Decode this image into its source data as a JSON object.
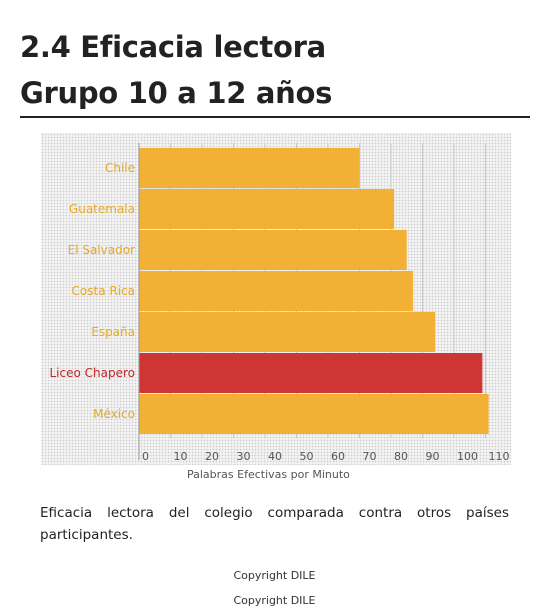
{
  "title_line1": "2.4 Eficacia lectora",
  "title_line2": "Grupo 10 a 12 años",
  "caption": "Eficacia lectora del colegio comparada contra otros países participantes.",
  "copyright": [
    "Copyright DILE",
    "Copyright DILE"
  ],
  "colors": {
    "bar": "#f2b035",
    "highlight_bar": "#d03535",
    "category_label": "#e9a825",
    "highlight_label": "#c62828",
    "grid": "#c8c8c8",
    "axis_text": "#555555"
  },
  "chart_data": {
    "type": "bar",
    "orientation": "horizontal",
    "categories": [
      "Chile",
      "Guatemala",
      "El Salvador",
      "Costa Rica",
      "España",
      "Liceo Chapero",
      "México"
    ],
    "values": [
      70,
      81,
      85,
      87,
      94,
      109,
      111
    ],
    "highlight": "Liceo Chapero",
    "xlabel": "Palabras Efectivas por Minuto",
    "ylabel": "",
    "xlim": [
      0,
      115
    ],
    "xticks": [
      0,
      10,
      20,
      30,
      40,
      50,
      60,
      70,
      80,
      90,
      100,
      110
    ],
    "grid": true,
    "legend": "none"
  }
}
